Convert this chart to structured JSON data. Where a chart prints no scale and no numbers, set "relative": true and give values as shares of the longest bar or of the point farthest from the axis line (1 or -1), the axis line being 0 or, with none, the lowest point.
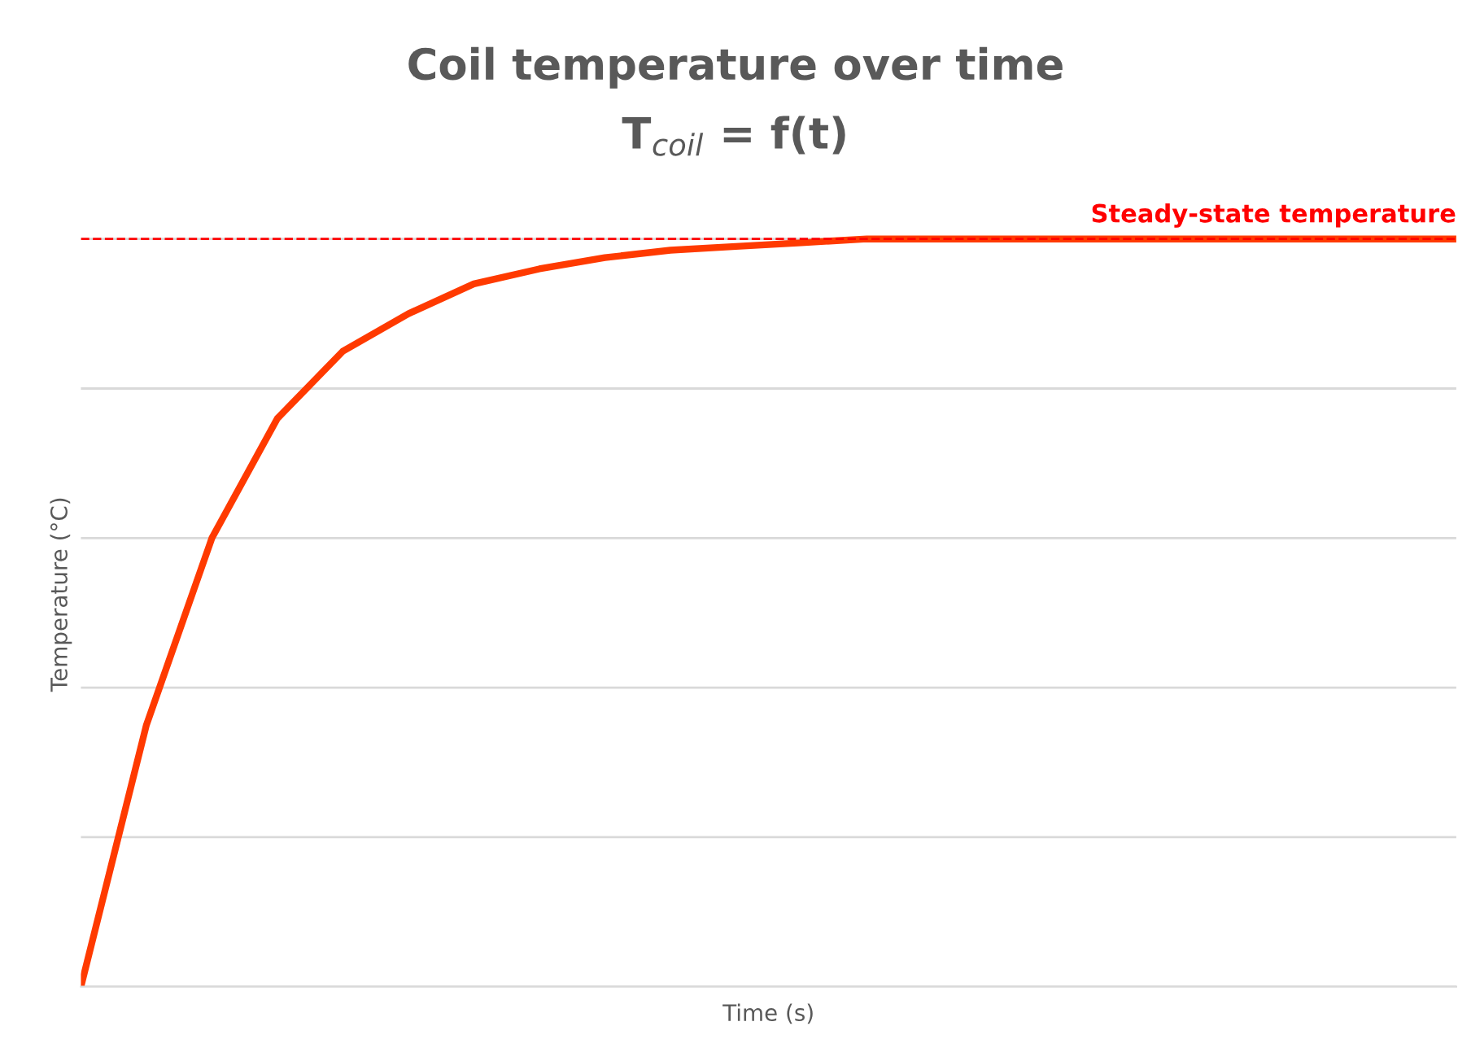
{
  "chart_data": {
    "type": "line",
    "title": "Coil temperature over time",
    "subtitle": "T$_{coil}$ = f(t)",
    "xlabel": "Time (s)",
    "ylabel": "Temperature (°C)",
    "relative": true,
    "grid": "y",
    "legend": false,
    "categories": [
      null,
      null,
      null,
      null,
      null,
      null,
      null,
      null,
      null,
      null,
      null,
      null,
      null,
      null,
      null,
      null,
      null,
      null,
      null,
      null,
      null,
      null
    ],
    "series": [
      {
        "color": "#ff3a00",
        "values": [
          0,
          0.35,
          0.6,
          0.76,
          0.85,
          0.9,
          0.94,
          0.96,
          0.975,
          0.985,
          0.99,
          0.995,
          1,
          1,
          1,
          1,
          1,
          1,
          1,
          1,
          1,
          1
        ]
      }
    ],
    "ref_lines": [
      {
        "axis": "y",
        "value": 1,
        "label": "Steady-state temperature",
        "color": "#ff0000",
        "line_style": "dashed"
      }
    ]
  }
}
